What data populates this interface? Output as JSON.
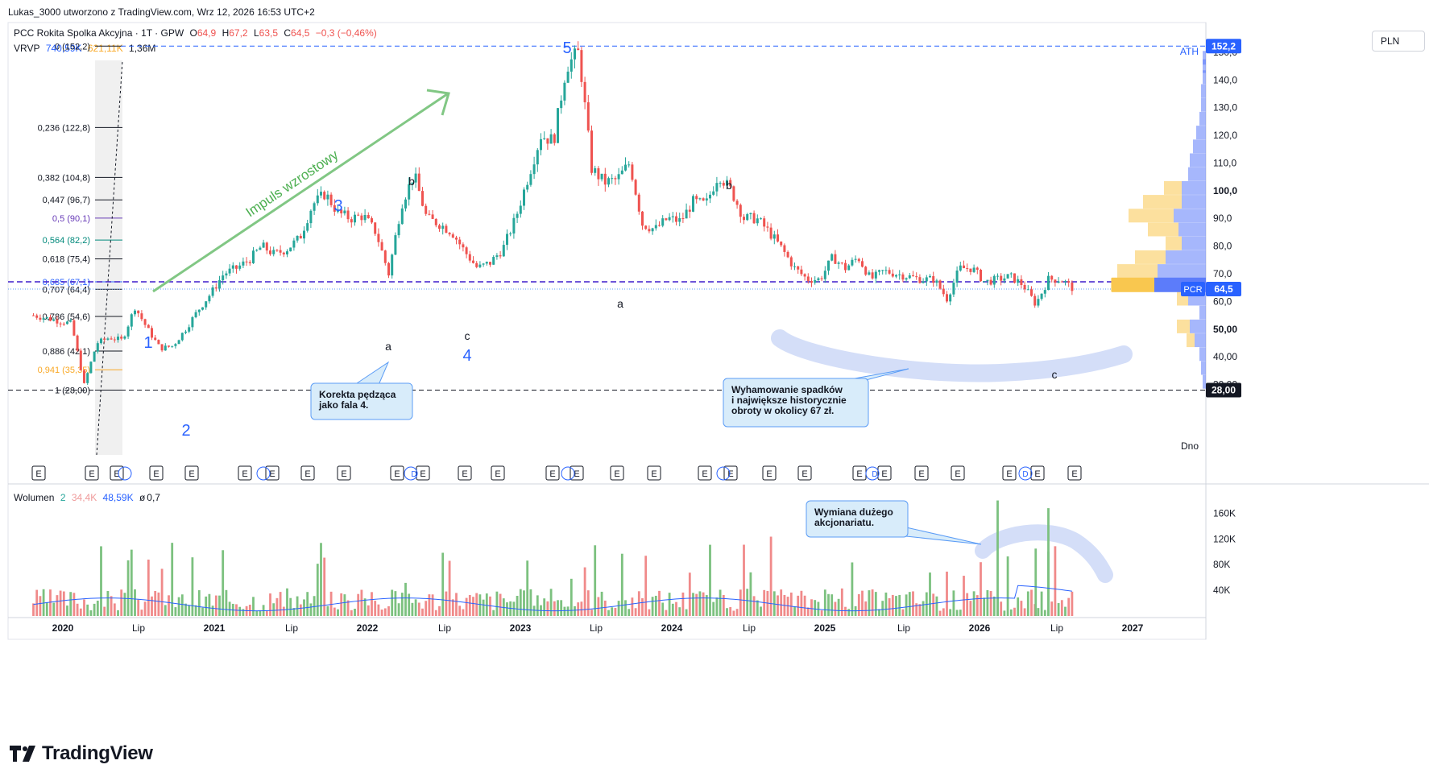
{
  "header": {
    "attribution": "Lukas_3000 utworzono z TradingView.com, Wrz 12, 2026 16:53 UTC+2"
  },
  "legend": {
    "symbol": "PCC Rokita Spolka Akcyjna · 1T · GPW",
    "open_label": "O",
    "open": "64,9",
    "high_label": "H",
    "high": "67,2",
    "low_label": "L",
    "low": "63,5",
    "close_label": "C",
    "close": "64,5",
    "change": "−0,3 (−0,46%)",
    "vrvp_label": "VRVP",
    "vrvp_v1": "740,59K",
    "vrvp_v2": "621,11K",
    "vrvp_v3": "1,36M",
    "volume_label": "Wolumen",
    "volume_len": "2",
    "volume_v1": "34,4K",
    "volume_v2": "48,59K",
    "volume_v3": "0,7",
    "volume_v3_prefix": "ø"
  },
  "price_axis": {
    "unit": "PLN",
    "ticks": [
      "150,0",
      "140,0",
      "130,0",
      "120,0",
      "110,0",
      "100,0",
      "90,0",
      "80,0",
      "70,0",
      "60,0",
      "50,00",
      "40,00",
      "30,00"
    ],
    "tick_values": [
      150,
      140,
      130,
      120,
      110,
      100,
      90,
      80,
      70,
      60,
      50,
      40,
      30
    ],
    "ath_badge": "152,2",
    "last_badge": "64,5",
    "symbol_badge": "PCR",
    "low_badge": "28,00"
  },
  "volume_axis": {
    "ticks": [
      "160K",
      "120K",
      "80K",
      "40K"
    ],
    "tick_values": [
      160,
      120,
      80,
      40
    ]
  },
  "time_axis": {
    "ticks": [
      "2020",
      "Lip",
      "2021",
      "Lip",
      "2022",
      "Lip",
      "2023",
      "Lip",
      "2024",
      "Lip",
      "2025",
      "Lip",
      "2026",
      "Lip",
      "2027"
    ]
  },
  "fib_levels": [
    {
      "label": "0 (152,2)",
      "value": 152.2,
      "color": "#131722"
    },
    {
      "label": "0,236 (122,8)",
      "value": 122.8,
      "color": "#131722"
    },
    {
      "label": "0,382 (104,8)",
      "value": 104.8,
      "color": "#131722"
    },
    {
      "label": "0,447 (96,7)",
      "value": 96.7,
      "color": "#131722"
    },
    {
      "label": "0,5 (90,1)",
      "value": 90.1,
      "color": "#673ab7"
    },
    {
      "label": "0,564 (82,2)",
      "value": 82.2,
      "color": "#00897b"
    },
    {
      "label": "0,618 (75,4)",
      "value": 75.4,
      "color": "#131722"
    },
    {
      "label": "0,685 (67,1)",
      "value": 67.1,
      "color": "#2962ff"
    },
    {
      "label": "0,707 (64,4)",
      "value": 64.4,
      "color": "#131722"
    },
    {
      "label": "0,786 (54,6)",
      "value": 54.6,
      "color": "#131722"
    },
    {
      "label": "0,886 (42,1)",
      "value": 42.1,
      "color": "#131722"
    },
    {
      "label": "0,941 (35,35)",
      "value": 35.35,
      "color": "#f9a825"
    },
    {
      "label": "1 (28,00)",
      "value": 28.0,
      "color": "#131722"
    }
  ],
  "annotations": {
    "ath": "ATH",
    "dno": "Dno",
    "impuls": "Impuls wzrostowy",
    "wave1": "1",
    "wave2": "2",
    "wave3": "3",
    "wave4": "4",
    "wave5": "5",
    "a1": "a",
    "b1": "b",
    "c1": "c",
    "a2": "a",
    "b2": "b",
    "c2": "c",
    "callout1_line1": "Korekta pędząca",
    "callout1_line2": "jako fala 4.",
    "callout2_line1": "Wyhamowanie spadków",
    "callout2_line2": "i największe historycznie",
    "callout2_line3": "obroty w okolicy 67 zł.",
    "callout3_line1": "Wymiana dużego",
    "callout3_line2": "akcjonariatu."
  },
  "event_markers": [
    "E",
    "E",
    "E",
    "E",
    "E",
    "E",
    "E",
    "E",
    "E",
    "E",
    "E",
    "E",
    "E",
    "E",
    "E",
    "E",
    "E",
    "E",
    "E",
    "E",
    "E",
    "E",
    "E",
    "E",
    "E",
    "E",
    "E",
    "E",
    "E",
    "E",
    "E"
  ],
  "dividend_marker": "D",
  "brand": "TradingView",
  "colors": {
    "up": "#26a69a",
    "down": "#ef5350",
    "vol_up": "#7cc17f",
    "vol_down": "#f08a8a",
    "fib_line": "#131722",
    "dashed_blue": "#2962ff",
    "dashed_purple": "#3f1dcb",
    "wave_label": "#2962ff",
    "impulse_arrow": "#81c784",
    "callout_bg": "#d8ecfa",
    "highlight": "#c5d3f6",
    "vrvp_up": "#f9c74f",
    "vrvp_down": "#5c7cfa"
  },
  "chart_data": {
    "type": "candlestick",
    "title": "PCC Rokita Spolka Akcyjna · 1T · GPW",
    "x_range": [
      "2019-11",
      "2027-03"
    ],
    "ylim": [
      28,
      152.2
    ],
    "price_path": [
      {
        "x": "2019-11",
        "y": 55
      },
      {
        "x": "2019-12",
        "y": 54
      },
      {
        "x": "2020-01",
        "y": 53
      },
      {
        "x": "2020-02",
        "y": 52
      },
      {
        "x": "2020-03",
        "y": 30
      },
      {
        "x": "2020-04",
        "y": 45
      },
      {
        "x": "2020-05",
        "y": 47
      },
      {
        "x": "2020-06",
        "y": 46
      },
      {
        "x": "2020-07",
        "y": 58
      },
      {
        "x": "2020-08",
        "y": 50
      },
      {
        "x": "2020-09",
        "y": 43
      },
      {
        "x": "2020-10",
        "y": 44
      },
      {
        "x": "2020-11",
        "y": 50
      },
      {
        "x": "2020-12",
        "y": 57
      },
      {
        "x": "2021-01",
        "y": 63
      },
      {
        "x": "2021-02",
        "y": 70
      },
      {
        "x": "2021-03",
        "y": 72
      },
      {
        "x": "2021-04",
        "y": 75
      },
      {
        "x": "2021-05",
        "y": 80
      },
      {
        "x": "2021-06",
        "y": 77
      },
      {
        "x": "2021-07",
        "y": 79
      },
      {
        "x": "2021-08",
        "y": 83
      },
      {
        "x": "2021-09",
        "y": 95
      },
      {
        "x": "2021-10",
        "y": 99
      },
      {
        "x": "2021-11",
        "y": 92
      },
      {
        "x": "2021-12",
        "y": 90
      },
      {
        "x": "2022-01",
        "y": 91
      },
      {
        "x": "2022-02",
        "y": 85
      },
      {
        "x": "2022-03",
        "y": 70
      },
      {
        "x": "2022-04",
        "y": 95
      },
      {
        "x": "2022-05",
        "y": 106
      },
      {
        "x": "2022-06",
        "y": 90
      },
      {
        "x": "2022-07",
        "y": 88
      },
      {
        "x": "2022-08",
        "y": 85
      },
      {
        "x": "2022-09",
        "y": 78
      },
      {
        "x": "2022-10",
        "y": 72
      },
      {
        "x": "2022-11",
        "y": 74
      },
      {
        "x": "2022-12",
        "y": 79
      },
      {
        "x": "2023-01",
        "y": 90
      },
      {
        "x": "2023-02",
        "y": 105
      },
      {
        "x": "2023-03",
        "y": 120
      },
      {
        "x": "2023-04",
        "y": 118
      },
      {
        "x": "2023-05",
        "y": 145
      },
      {
        "x": "2023-06",
        "y": 150
      },
      {
        "x": "2023-07",
        "y": 108
      },
      {
        "x": "2023-08",
        "y": 103
      },
      {
        "x": "2023-09",
        "y": 104
      },
      {
        "x": "2023-10",
        "y": 110
      },
      {
        "x": "2023-11",
        "y": 88
      },
      {
        "x": "2023-12",
        "y": 86
      },
      {
        "x": "2024-01",
        "y": 90
      },
      {
        "x": "2024-02",
        "y": 89
      },
      {
        "x": "2024-03",
        "y": 96
      },
      {
        "x": "2024-04",
        "y": 95
      },
      {
        "x": "2024-05",
        "y": 106
      },
      {
        "x": "2024-06",
        "y": 100
      },
      {
        "x": "2024-07",
        "y": 90
      },
      {
        "x": "2024-08",
        "y": 90
      },
      {
        "x": "2024-09",
        "y": 85
      },
      {
        "x": "2024-10",
        "y": 79
      },
      {
        "x": "2024-11",
        "y": 72
      },
      {
        "x": "2024-12",
        "y": 68
      },
      {
        "x": "2025-01",
        "y": 68
      },
      {
        "x": "2025-02",
        "y": 76
      },
      {
        "x": "2025-03",
        "y": 72
      },
      {
        "x": "2025-04",
        "y": 76
      },
      {
        "x": "2025-05",
        "y": 68
      },
      {
        "x": "2025-06",
        "y": 71
      },
      {
        "x": "2025-07",
        "y": 70
      },
      {
        "x": "2025-08",
        "y": 69
      },
      {
        "x": "2025-09",
        "y": 68
      },
      {
        "x": "2025-10",
        "y": 68
      },
      {
        "x": "2025-11",
        "y": 61
      },
      {
        "x": "2025-12",
        "y": 72
      },
      {
        "x": "2026-01",
        "y": 72
      },
      {
        "x": "2026-02",
        "y": 67
      },
      {
        "x": "2026-03",
        "y": 68
      },
      {
        "x": "2026-04",
        "y": 69
      },
      {
        "x": "2026-05",
        "y": 66
      },
      {
        "x": "2026-06",
        "y": 59
      },
      {
        "x": "2026-07",
        "y": 68
      },
      {
        "x": "2026-08",
        "y": 68
      },
      {
        "x": "2026-09",
        "y": 64.5
      }
    ],
    "volume_spikes_k": [
      {
        "x": "2026-03",
        "y": 180
      },
      {
        "x": "2026-07",
        "y": 168
      },
      {
        "x": "2026-06",
        "y": 105
      }
    ]
  }
}
